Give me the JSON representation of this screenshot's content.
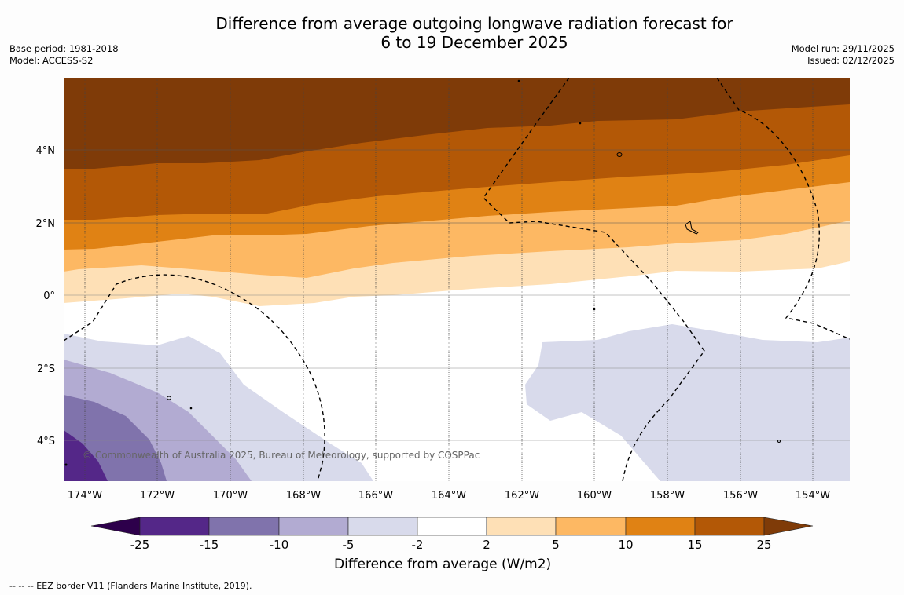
{
  "title": {
    "line1": "Difference from average outgoing longwave radiation forecast for",
    "line2": "6 to 19 December 2025"
  },
  "meta": {
    "base_period": "Base period: 1981-2018",
    "model": "Model: ACCESS-S2",
    "model_run": "Model run: 29/11/2025",
    "issued": "Issued: 02/12/2025"
  },
  "map": {
    "lat_labels": [
      "4°N",
      "2°N",
      "0°",
      "2°S",
      "4°S"
    ],
    "lon_labels": [
      "174°W",
      "172°W",
      "170°W",
      "168°W",
      "166°W",
      "164°W",
      "162°W",
      "160°W",
      "158°W",
      "156°W",
      "154°W"
    ],
    "copyright": "© Commonwealth of Australia 2025, Bureau of Meteorology, supported by COSPPac"
  },
  "colorbar": {
    "title": "Difference from average (W/m2)",
    "ticks": [
      "-25",
      "-15",
      "-10",
      "-5",
      "-2",
      "2",
      "5",
      "10",
      "15",
      "25"
    ],
    "colors": {
      "extend_low": "#2d004b",
      "b_neg25_neg15": "#542788",
      "b_neg15_neg10": "#8073ac",
      "b_neg10_neg5": "#b2abd2",
      "b_neg5_neg2": "#d8daeb",
      "b_neg2_2": "#ffffff",
      "b_2_5": "#fee0b6",
      "b_5_10": "#fdb863",
      "b_10_15": "#e08214",
      "b_15_25": "#b35806",
      "extend_high": "#7f3b08"
    }
  },
  "footnote": "--  --  -- EEZ border V11 (Flanders Marine Institute, 2019)."
}
